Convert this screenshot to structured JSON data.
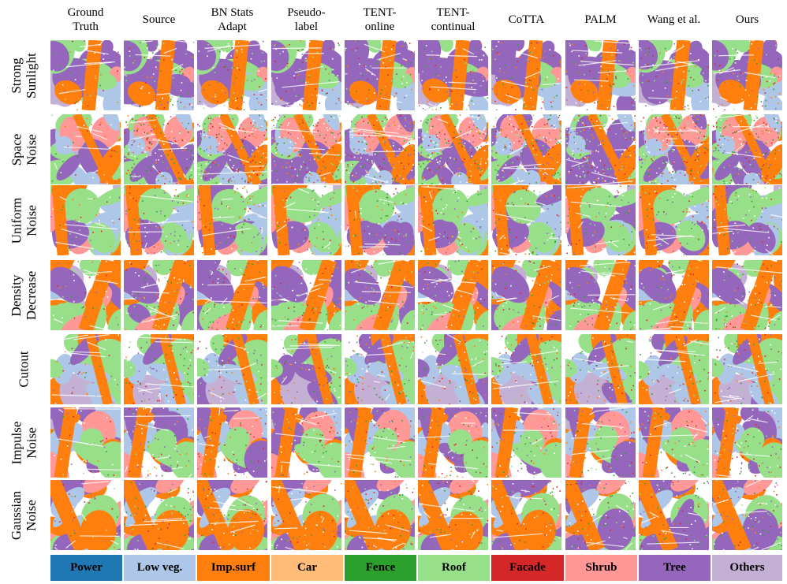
{
  "columns": [
    "Ground\nTruth",
    "Source",
    "BN Stats\nAdapt",
    "Pseudo-\nlabel",
    "TENT-\nonline",
    "TENT-\ncontinual",
    "CoTTA",
    "PALM",
    "Wang et al.",
    "Ours"
  ],
  "rows": [
    "Strong\nSunlight",
    "Space\nNoise",
    "Uniform\nNoise",
    "Density\nDecrease",
    "Cutout",
    "Impulse\nNoise",
    "Gaussian\nNoise"
  ],
  "legend": [
    {
      "label": "Power",
      "color": "#1f77b4"
    },
    {
      "label": "Low veg.",
      "color": "#aec7e8"
    },
    {
      "label": "Imp.surf",
      "color": "#ff7f0e"
    },
    {
      "label": "Car",
      "color": "#ffbb78"
    },
    {
      "label": "Fence",
      "color": "#2ca02c"
    },
    {
      "label": "Roof",
      "color": "#98df8a"
    },
    {
      "label": "Facade",
      "color": "#d62728"
    },
    {
      "label": "Shrub",
      "color": "#ff9896"
    },
    {
      "label": "Tree",
      "color": "#9467bd"
    },
    {
      "label": "Others",
      "color": "#c5b0d5"
    }
  ]
}
